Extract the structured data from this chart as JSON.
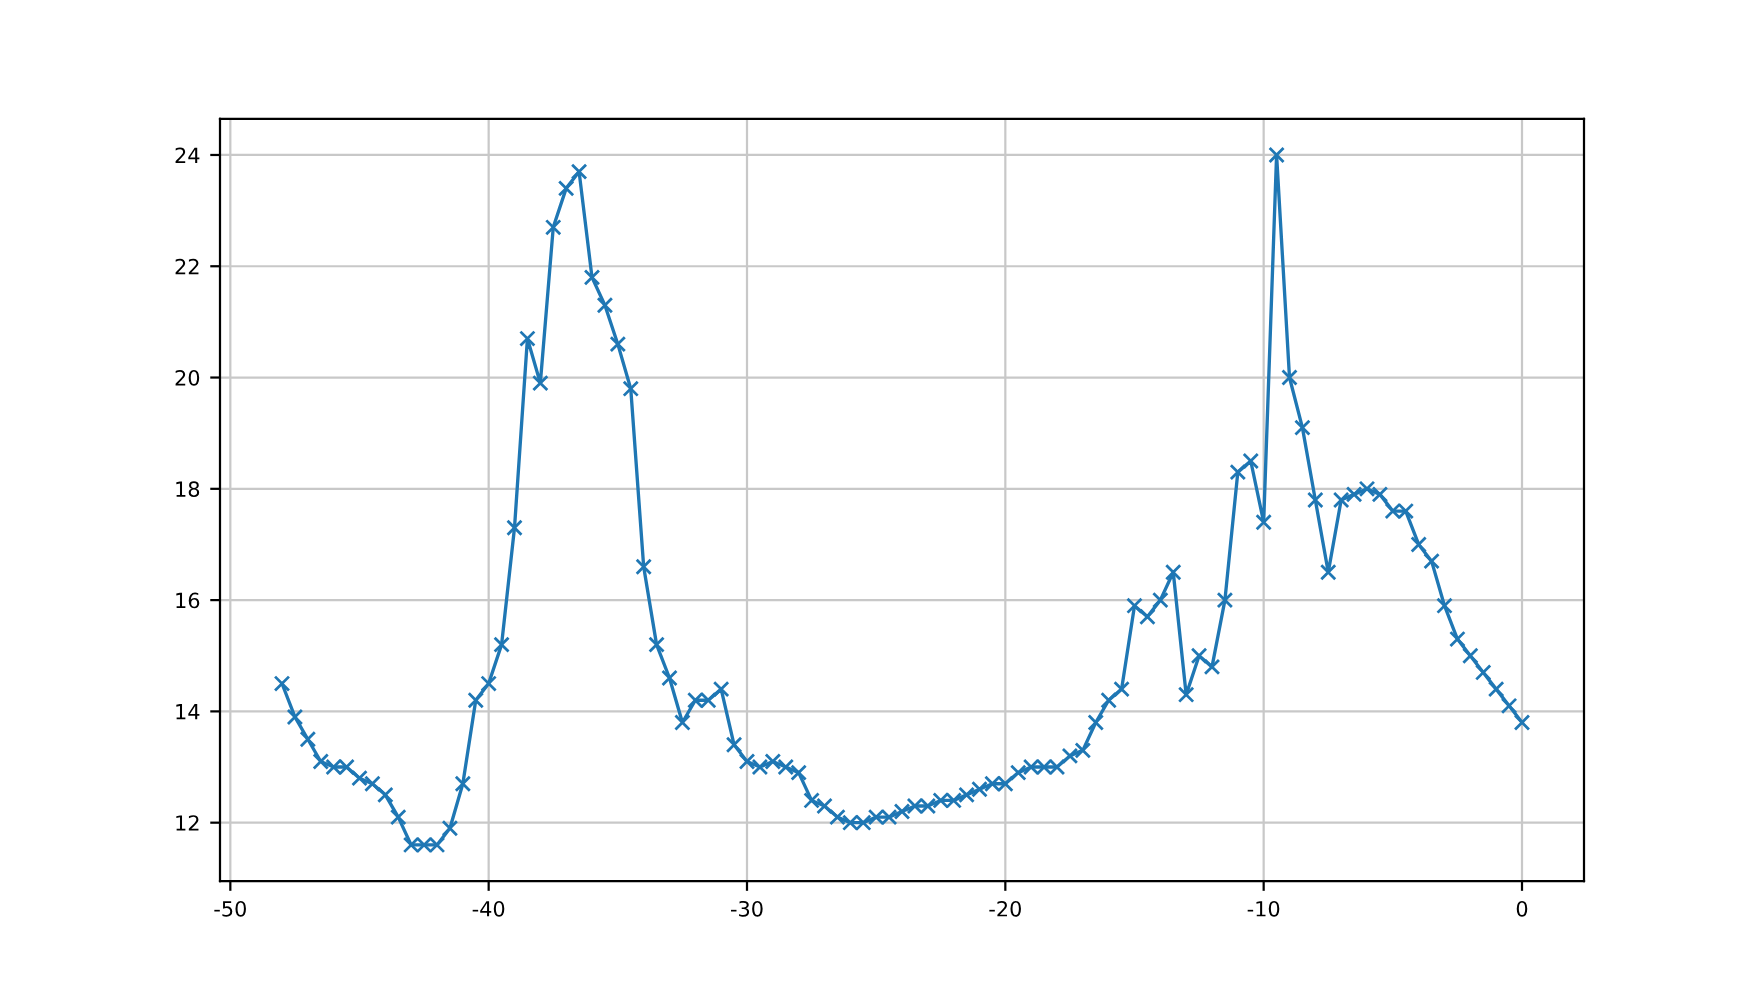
{
  "chart_data": {
    "type": "line",
    "marker": "cross",
    "line_style": "solid",
    "grid": true,
    "x": [
      -48,
      -47.5,
      -47,
      -46.5,
      -46,
      -45.5,
      -45,
      -44.5,
      -44,
      -43.5,
      -43,
      -42.5,
      -42,
      -41.5,
      -41,
      -40.5,
      -40,
      -39.5,
      -39,
      -38.5,
      -38,
      -37.5,
      -37,
      -36.5,
      -36,
      -35.5,
      -35,
      -34.5,
      -34,
      -33.5,
      -33,
      -32.5,
      -32,
      -31.5,
      -31,
      -30.5,
      -30,
      -29.5,
      -29,
      -28.5,
      -28,
      -27.5,
      -27,
      -26.5,
      -26,
      -25.5,
      -25,
      -24.5,
      -24,
      -23.5,
      -23,
      -22.5,
      -22,
      -21.5,
      -21,
      -20.5,
      -20,
      -19.5,
      -19,
      -18.5,
      -18,
      -17.5,
      -17,
      -16.5,
      -16,
      -15.5,
      -15,
      -14.5,
      -14,
      -13.5,
      -13,
      -12.5,
      -12,
      -11.5,
      -11,
      -10.5,
      -10,
      -9.5,
      -9,
      -8.5,
      -8,
      -7.5,
      -7,
      -6.5,
      -6,
      -5.5,
      -5,
      -4.5,
      -4,
      -3.5,
      -3,
      -2.5,
      -2,
      -1.5,
      -1,
      -0.5,
      0
    ],
    "series": [
      {
        "color": "#1f77b4",
        "values": [
          14.5,
          13.9,
          13.5,
          13.1,
          13.0,
          13.0,
          12.8,
          12.7,
          12.5,
          12.1,
          11.6,
          11.6,
          11.6,
          11.9,
          12.7,
          14.2,
          14.5,
          15.2,
          17.3,
          20.7,
          19.9,
          22.7,
          23.4,
          23.7,
          21.8,
          21.3,
          20.6,
          19.8,
          16.6,
          15.2,
          14.6,
          13.8,
          14.2,
          14.2,
          14.4,
          13.4,
          13.1,
          13.0,
          13.1,
          13.0,
          12.9,
          12.4,
          12.3,
          12.1,
          12.0,
          12.0,
          12.1,
          12.1,
          12.2,
          12.3,
          12.3,
          12.4,
          12.4,
          12.5,
          12.6,
          12.7,
          12.7,
          12.9,
          13.0,
          13.0,
          13.0,
          13.2,
          13.3,
          13.8,
          14.2,
          14.4,
          15.9,
          15.7,
          16.0,
          16.5,
          14.3,
          15.0,
          14.8,
          16.0,
          18.3,
          18.5,
          17.4,
          24.0,
          20.0,
          19.1,
          17.8,
          16.5,
          17.8,
          17.9,
          18.0,
          17.9,
          17.6,
          17.6,
          17.0,
          16.7,
          15.9,
          15.3,
          15.0,
          14.7,
          14.4,
          14.1,
          13.8
        ]
      }
    ],
    "xlim": [
      -50.4,
      2.4
    ],
    "ylim": [
      10.95,
      24.65
    ],
    "xticks": [
      -50,
      -40,
      -30,
      -20,
      -10,
      0
    ],
    "yticks": [
      12,
      14,
      16,
      18,
      20,
      22,
      24
    ]
  }
}
